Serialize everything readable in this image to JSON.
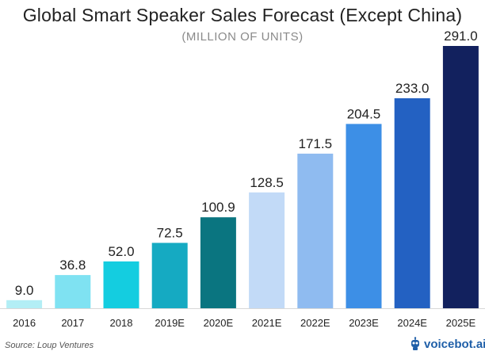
{
  "chart_data": {
    "type": "bar",
    "title": "Global Smart Speaker Sales Forecast (Except China)",
    "subtitle": "(MILLION OF UNITS)",
    "categories": [
      "2016",
      "2017",
      "2018",
      "2019E",
      "2020E",
      "2021E",
      "2022E",
      "2023E",
      "2024E",
      "2025E"
    ],
    "values": [
      9.0,
      36.8,
      52.0,
      72.5,
      100.9,
      128.5,
      171.5,
      204.5,
      233.0,
      291.0
    ],
    "value_labels": [
      "9.0",
      "36.8",
      "52.0",
      "72.5",
      "100.9",
      "128.5",
      "171.5",
      "204.5",
      "233.0",
      "291.0"
    ],
    "colors": [
      "#b3eef5",
      "#7fe2f2",
      "#14cde0",
      "#15aac2",
      "#0a7580",
      "#c2daf7",
      "#8fbbf0",
      "#3d8fe6",
      "#2361c2",
      "#12215e"
    ],
    "ylim": [
      0,
      291.0
    ],
    "grid": false,
    "legend": "none"
  },
  "footer": {
    "source": "Source: Loup Ventures",
    "brand": "voicebot.ai"
  }
}
